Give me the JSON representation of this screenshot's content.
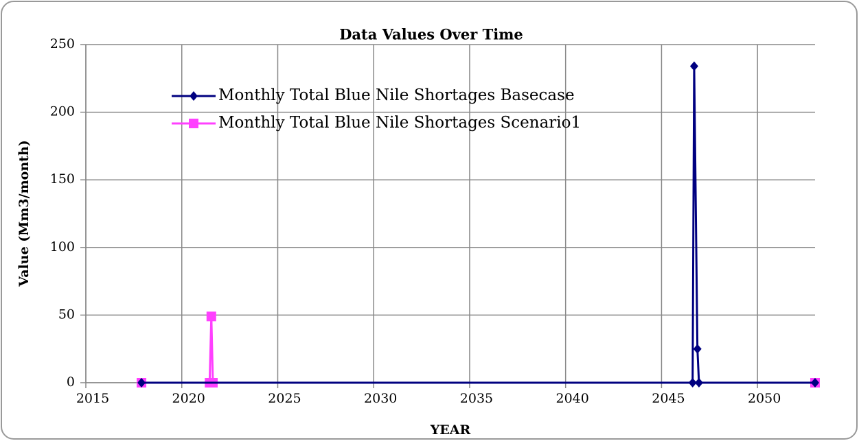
{
  "chart_data": {
    "type": "line",
    "title": "Data Values Over Time",
    "x_label": "YEAR",
    "y_label": "Value (Mm3/month)",
    "xlim": [
      2015,
      2053
    ],
    "xticks": [
      2015,
      2020,
      2025,
      2030,
      2035,
      2040,
      2045,
      2050
    ],
    "ylim": [
      0,
      250
    ],
    "yticks": [
      0,
      50,
      100,
      150,
      200,
      250
    ],
    "grid": true,
    "legend": "upper left",
    "series": [
      {
        "name": "Monthly Total Blue Nile Shortages Basecase",
        "color": "#000080",
        "marker": "diamond",
        "x": [
          2017.9,
          2046.62,
          2046.7,
          2046.87,
          2046.95,
          2053
        ],
        "values": [
          0,
          0,
          234,
          25,
          0,
          0
        ]
      },
      {
        "name": "Monthly Total Blue Nile Shortages Scenario1",
        "color": "#ff40ff",
        "marker": "square",
        "x": [
          2017.9,
          2021.45,
          2021.54,
          2021.62,
          2053
        ],
        "values": [
          0,
          0,
          49,
          0,
          0
        ]
      }
    ]
  }
}
